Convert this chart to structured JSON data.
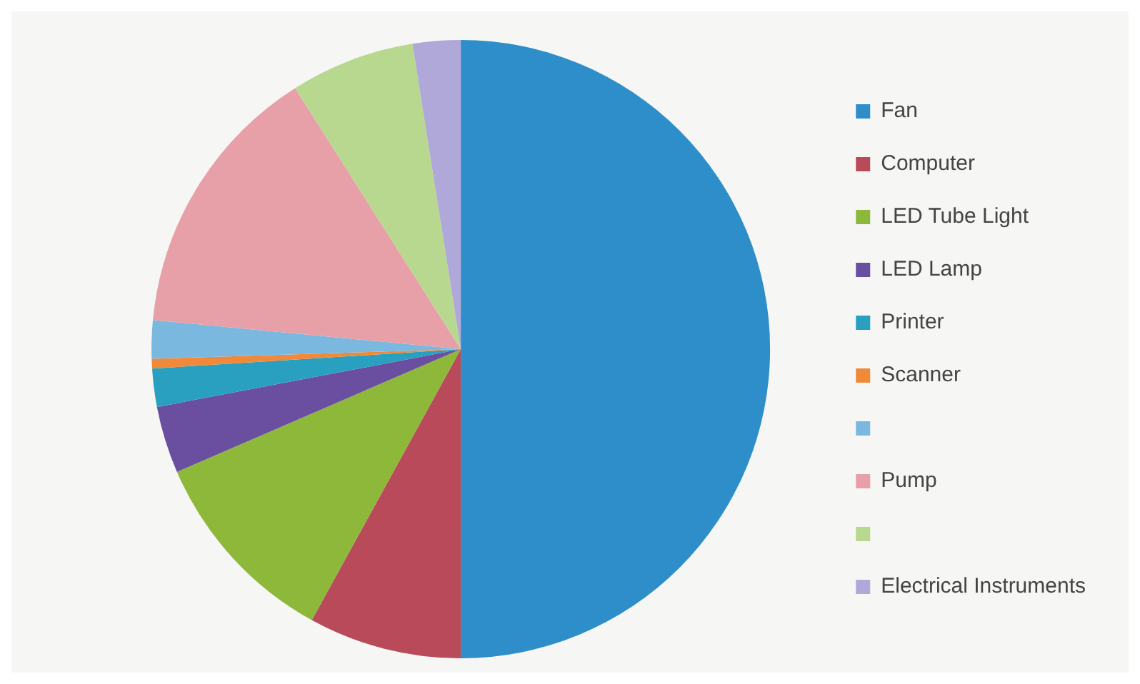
{
  "chart_data": {
    "type": "pie",
    "categories": [
      "Fan",
      "Computer",
      "LED Tube Light",
      "LED Lamp",
      "Printer",
      "Scanner",
      null,
      "Pump",
      null,
      "Electrical Instruments"
    ],
    "values": [
      50,
      8,
      10.5,
      3.5,
      2,
      0.5,
      2,
      14.5,
      6.5,
      2.5
    ],
    "colors": [
      "#2e8ec9",
      "#b94a5a",
      "#8db83a",
      "#6a4fa0",
      "#2aa0c0",
      "#f08a3a",
      "#7ab8e0",
      "#e8a0a8",
      "#b8d890",
      "#b0a8d8"
    ],
    "legend": "right"
  }
}
